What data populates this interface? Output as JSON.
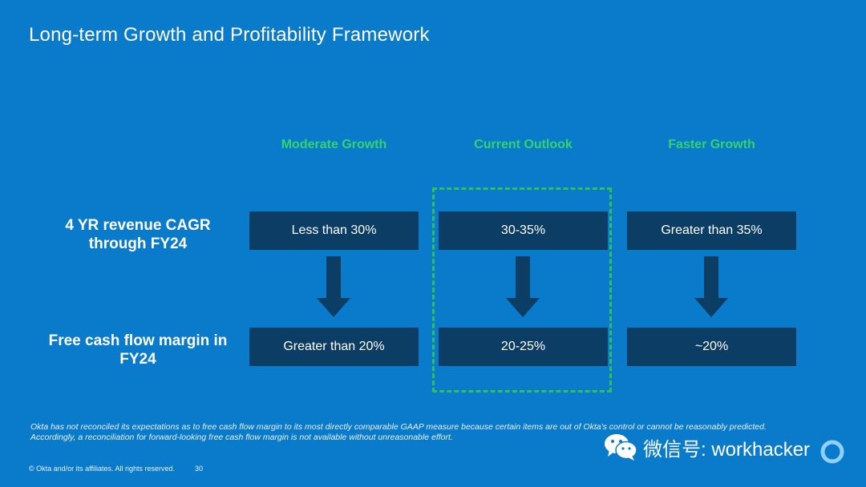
{
  "slide": {
    "title": "Long-term Growth and Profitability Framework"
  },
  "columns": [
    {
      "header": "Moderate Growth",
      "revenue_cagr": "Less than 30%",
      "fcf_margin": "Greater than 20%"
    },
    {
      "header": "Current Outlook",
      "revenue_cagr": "30-35%",
      "fcf_margin": "20-25%"
    },
    {
      "header": "Faster Growth",
      "revenue_cagr": "Greater than 35%",
      "fcf_margin": "~20%"
    }
  ],
  "rows": {
    "revenue_label": "4 YR revenue CAGR through FY24",
    "fcf_label": "Free cash flow margin in FY24"
  },
  "footer": {
    "note": "Okta has not reconciled its expectations as to free cash flow margin to its most directly comparable GAAP measure because certain items are out of Okta's control or cannot be reasonably predicted. Accordingly, a reconciliation for forward-looking free cash flow margin is not available without unreasonable effort.",
    "copyright": "© Okta and/or its affiliates. All rights reserved.",
    "page_number": "30"
  },
  "watermark": {
    "text": "微信号: workhacker",
    "icon": "wechat-icon"
  },
  "colors": {
    "background": "#0a7acb",
    "box": "#0c3d64",
    "header_green": "#34d36b",
    "highlight_border": "#2fbf5b"
  }
}
